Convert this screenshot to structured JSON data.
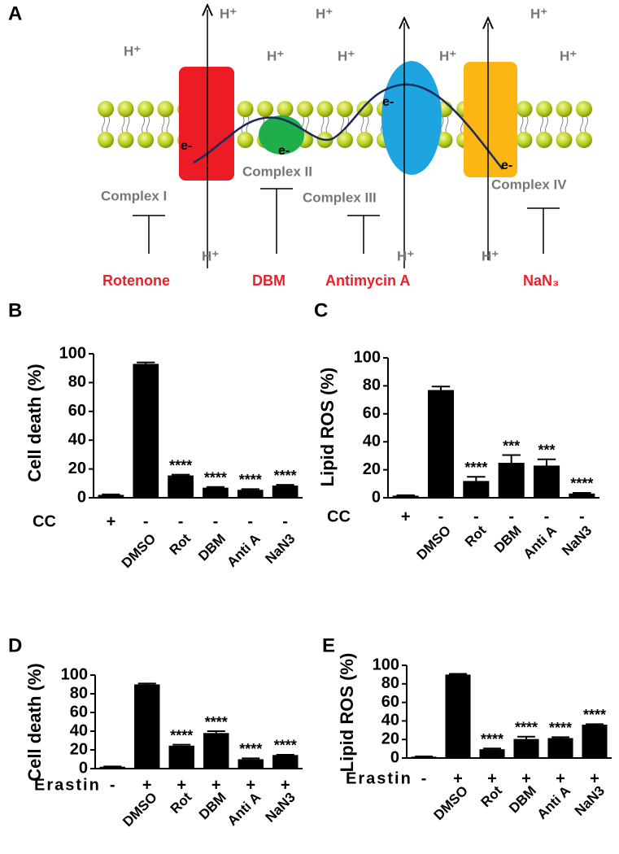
{
  "diagram": {
    "panel": "A",
    "h_plus": "H⁺",
    "electron": "e-",
    "complexes": [
      "Complex I",
      "Complex II",
      "Complex III",
      "Complex IV"
    ],
    "inhibitors": [
      "Rotenone",
      "DBM",
      "Antimycin A",
      "NaN₃"
    ]
  },
  "chart_data": [
    {
      "type": "bar",
      "panel": "B",
      "ylabel": "Cell death (%)",
      "ylim": [
        0,
        100
      ],
      "yticks": [
        0,
        20,
        40,
        60,
        80,
        100
      ],
      "categories": [
        null,
        "DMSO",
        "Rot",
        "DBM",
        "Anti A",
        "NaN3"
      ],
      "values": [
        2,
        93,
        15.5,
        7,
        5.5,
        8.5
      ],
      "errors": [
        0.3,
        1,
        0.5,
        0.5,
        0.5,
        0.5
      ],
      "annotations": [
        null,
        null,
        "****",
        "****",
        "****",
        "****"
      ],
      "treatment": "CC",
      "treatment_signs": [
        "+",
        "-",
        "-",
        "-",
        "-",
        "-"
      ],
      "color": "#000000"
    },
    {
      "type": "bar",
      "panel": "C",
      "ylabel": "Lipid ROS (%)",
      "ylim": [
        0,
        100
      ],
      "yticks": [
        0,
        20,
        40,
        60,
        80,
        100
      ],
      "categories": [
        null,
        "DMSO",
        "Rot",
        "DBM",
        "Anti A",
        "NaN3"
      ],
      "values": [
        1.5,
        77,
        12,
        25,
        23,
        3
      ],
      "errors": [
        0.3,
        2.5,
        3,
        5.5,
        4.5,
        0.5
      ],
      "annotations": [
        null,
        null,
        "****",
        "***",
        "***",
        "****"
      ],
      "treatment": "CC",
      "treatment_signs": [
        "+",
        "-",
        "-",
        "-",
        "-",
        "-"
      ],
      "color": "#000000"
    },
    {
      "type": "bar",
      "panel": "D",
      "ylabel": "Cell death (%)",
      "ylim": [
        0,
        100
      ],
      "yticks": [
        0,
        20,
        40,
        60,
        80,
        100
      ],
      "categories": [
        null,
        "DMSO",
        "Rot",
        "DBM",
        "Anti A",
        "NaN3"
      ],
      "values": [
        2,
        90,
        24.5,
        38,
        10,
        14.5
      ],
      "errors": [
        0.3,
        1,
        1,
        2,
        1,
        0.3
      ],
      "annotations": [
        null,
        null,
        "****",
        "****",
        "****",
        "****"
      ],
      "treatment": "Erastin",
      "treatment_signs": [
        "-",
        "+",
        "+",
        "+",
        "+",
        "+"
      ],
      "color": "#000000"
    },
    {
      "type": "bar",
      "panel": "E",
      "ylabel": "Lipid ROS (%)",
      "ylim": [
        0,
        100
      ],
      "yticks": [
        0,
        20,
        40,
        60,
        80,
        100
      ],
      "categories": [
        null,
        "DMSO",
        "Rot",
        "DBM",
        "Anti A",
        "NaN3"
      ],
      "values": [
        1.5,
        90,
        9.5,
        20.5,
        21.5,
        36
      ],
      "errors": [
        0.3,
        0.8,
        0.8,
        2.5,
        1,
        0.5
      ],
      "annotations": [
        null,
        null,
        "****",
        "****",
        "****",
        "****"
      ],
      "treatment": "Erastin",
      "treatment_signs": [
        "-",
        "+",
        "+",
        "+",
        "+",
        "+"
      ],
      "color": "#000000"
    }
  ]
}
